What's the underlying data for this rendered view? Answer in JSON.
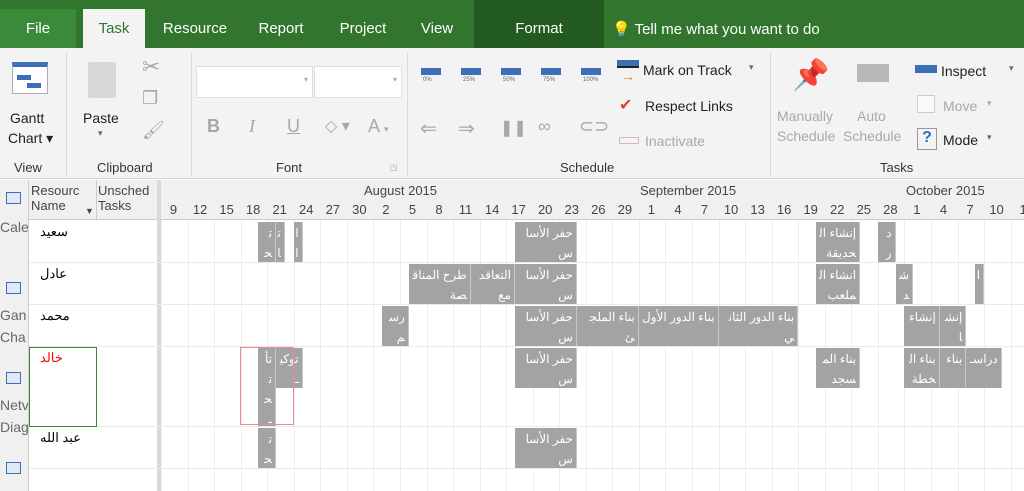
{
  "tabs": {
    "file": "File",
    "task": "Task",
    "resource": "Resource",
    "report": "Report",
    "project": "Project",
    "view": "View",
    "format": "Format",
    "tell_me": "Tell me what you want to do"
  },
  "ribbon": {
    "view": {
      "gantt": "Gantt",
      "chart": "Chart",
      "group": "View"
    },
    "clipboard": {
      "paste": "Paste",
      "group": "Clipboard"
    },
    "font": {
      "bold": "B",
      "italic": "I",
      "underline": "U",
      "color": "A",
      "group": "Font",
      "font_name": "",
      "font_size": ""
    },
    "schedule": {
      "pct": [
        "0%",
        "25%",
        "50%",
        "75%",
        "100%"
      ],
      "mark_on_track": "Mark on Track",
      "respect_links": "Respect Links",
      "inactivate": "Inactivate",
      "group": "Schedule"
    },
    "tasks": {
      "manually": "Manually",
      "manually2": "Schedule",
      "auto": "Auto",
      "auto2": "Schedule",
      "inspect": "Inspect",
      "move": "Move",
      "mode": "Mode",
      "group": "Tasks"
    }
  },
  "view_bar": {
    "items": [
      "Cale",
      "Gan",
      "Cha",
      "Netv",
      "Diag"
    ]
  },
  "table": {
    "col1a": "Resourc",
    "col1b": "Name",
    "col2a": "Unsched",
    "col2b": "Tasks"
  },
  "timescale": {
    "months": [
      "August 2015",
      "September 2015",
      "October 2015"
    ],
    "ticks": [
      "9",
      "12",
      "15",
      "18",
      "21",
      "24",
      "27",
      "30",
      "2",
      "5",
      "8",
      "11",
      "14",
      "17",
      "20",
      "23",
      "26",
      "29",
      "1",
      "4",
      "7",
      "10",
      "13",
      "16",
      "19",
      "22",
      "25",
      "28",
      "1",
      "4",
      "7",
      "10",
      "1"
    ]
  },
  "colors": {
    "ribbon_green": "#31752f",
    "bar": "#a3a3a3",
    "overallocated": "#ff0000"
  },
  "resources": [
    {
      "name": "سعيد",
      "overallocated": false,
      "bars": [
        {
          "label": "تحـ",
          "start": "2015-07-19",
          "end": "2015-07-21",
          "level": "full"
        },
        {
          "label": "تا",
          "start": "2015-07-21",
          "end": "2015-07-22",
          "level": "full"
        },
        {
          "label": "ا ا",
          "start": "2015-07-23",
          "end": "2015-07-24",
          "level": "full"
        },
        {
          "label": "حفر الأساس",
          "start": "2015-08-17",
          "end": "2015-08-24",
          "level": "full"
        },
        {
          "label": "إنشاء الحديقة",
          "start": "2015-09-20",
          "end": "2015-09-25",
          "level": "full"
        },
        {
          "label": "در",
          "start": "2015-09-27",
          "end": "2015-09-29",
          "level": "full"
        }
      ]
    },
    {
      "name": "عادل",
      "overallocated": false,
      "bars": [
        {
          "label": "طرح المناقصة",
          "start": "2015-08-05",
          "end": "2015-08-12",
          "level": "full"
        },
        {
          "label": "التعاقد مع",
          "start": "2015-08-12",
          "end": "2015-08-17",
          "level": "full"
        },
        {
          "label": "حفر الأساس",
          "start": "2015-08-17",
          "end": "2015-08-24",
          "level": "full"
        },
        {
          "label": "انشاء الملعب",
          "start": "2015-09-20",
          "end": "2015-09-25",
          "level": "full"
        },
        {
          "label": "شد",
          "start": "2015-09-29",
          "end": "2015-10-01",
          "level": "full"
        },
        {
          "label": "ا",
          "start": "2015-10-08",
          "end": "2015-10-09",
          "level": "full"
        }
      ]
    },
    {
      "name": "محمد",
      "overallocated": false,
      "bars": [
        {
          "label": "رسم",
          "start": "2015-08-02",
          "end": "2015-08-05",
          "level": "full"
        },
        {
          "label": "حفر الأساس",
          "start": "2015-08-17",
          "end": "2015-08-24",
          "level": "full"
        },
        {
          "label": "بناء الملجئ",
          "start": "2015-08-24",
          "end": "2015-08-31",
          "level": "full"
        },
        {
          "label": "بناء الدور الأول",
          "start": "2015-08-31",
          "end": "2015-09-09",
          "level": "full"
        },
        {
          "label": "بناء الدور الثاني",
          "start": "2015-09-09",
          "end": "2015-09-18",
          "level": "full"
        },
        {
          "label": "إنشاء",
          "start": "2015-09-30",
          "end": "2015-10-04",
          "level": "full"
        },
        {
          "label": "إنشا",
          "start": "2015-10-04",
          "end": "2015-10-07",
          "level": "full"
        }
      ]
    },
    {
      "name": "خالد",
      "overallocated": true,
      "bars": [
        {
          "label": "تأ تحـ",
          "start": "2015-07-19",
          "end": "2015-07-21",
          "level": "tall"
        },
        {
          "label": "توكيـ",
          "start": "2015-07-21",
          "end": "2015-07-24",
          "level": "full"
        },
        {
          "label": "حفر الأساس",
          "start": "2015-08-17",
          "end": "2015-08-24",
          "level": "full"
        },
        {
          "label": "بناء المسجد",
          "start": "2015-09-20",
          "end": "2015-09-25",
          "level": "full"
        },
        {
          "label": "بناء الخطة",
          "start": "2015-09-30",
          "end": "2015-10-04",
          "level": "full"
        },
        {
          "label": "بناء",
          "start": "2015-10-04",
          "end": "2015-10-07",
          "level": "full"
        },
        {
          "label": "دراسـ",
          "start": "2015-10-07",
          "end": "2015-10-11",
          "level": "full"
        }
      ]
    },
    {
      "name": "عبد الله",
      "overallocated": false,
      "bars": [
        {
          "label": "تحـ",
          "start": "2015-07-19",
          "end": "2015-07-21",
          "level": "full"
        },
        {
          "label": "حفر الأساس",
          "start": "2015-08-17",
          "end": "2015-08-24",
          "level": "full"
        }
      ]
    }
  ]
}
